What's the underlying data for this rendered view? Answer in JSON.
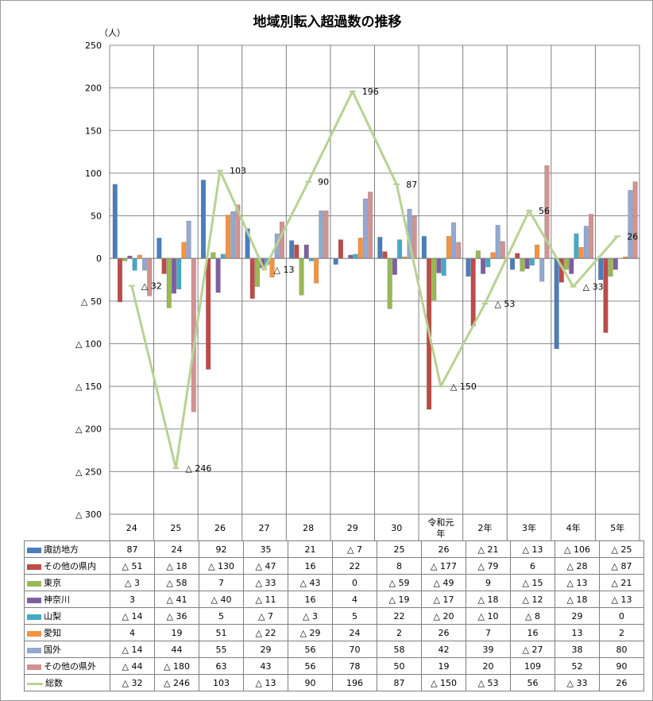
{
  "chart_data": {
    "type": "bar",
    "title": "地域別転入超過数の推移",
    "ylabel": "（人）",
    "ylim": [
      -300,
      250
    ],
    "yticks": [
      250,
      200,
      150,
      100,
      50,
      0,
      -50,
      -100,
      -150,
      -200,
      -250,
      -300
    ],
    "ytick_labels": [
      "250",
      "200",
      "150",
      "100",
      "50",
      "0",
      "△ 50",
      "△ 100",
      "△ 150",
      "△ 200",
      "△ 250",
      "△ 300"
    ],
    "categories": [
      "24",
      "25",
      "26",
      "27",
      "28",
      "29",
      "30",
      "令和元年",
      "2年",
      "3年",
      "4年",
      "5年"
    ],
    "grid": true,
    "legend": "table-bottom",
    "series": [
      {
        "name": "諏訪地方",
        "type": "bar",
        "color": "#4a7ebb",
        "values": [
          87,
          24,
          92,
          35,
          21,
          -7,
          25,
          26,
          -21,
          -13,
          -106,
          -25
        ],
        "labels": [
          "87",
          "24",
          "92",
          "35",
          "21",
          "△ 7",
          "25",
          "26",
          "△ 21",
          "△ 13",
          "△ 106",
          "△ 25"
        ]
      },
      {
        "name": "その他の県内",
        "type": "bar",
        "color": "#be4b48",
        "values": [
          -51,
          -18,
          -130,
          -47,
          16,
          22,
          8,
          -177,
          -79,
          6,
          -28,
          -87
        ],
        "labels": [
          "△ 51",
          "△ 18",
          "△ 130",
          "△ 47",
          "16",
          "22",
          "8",
          "△ 177",
          "△ 79",
          "6",
          "△ 28",
          "△ 87"
        ]
      },
      {
        "name": "東京",
        "type": "bar",
        "color": "#98b954",
        "values": [
          -3,
          -58,
          7,
          -33,
          -43,
          0,
          -59,
          -49,
          9,
          -15,
          -13,
          -21
        ],
        "labels": [
          "△ 3",
          "△ 58",
          "7",
          "△ 33",
          "△ 43",
          "0",
          "△ 59",
          "△ 49",
          "9",
          "△ 15",
          "△ 13",
          "△ 21"
        ]
      },
      {
        "name": "神奈川",
        "type": "bar",
        "color": "#7d60a0",
        "values": [
          3,
          -41,
          -40,
          -11,
          16,
          4,
          -19,
          -17,
          -18,
          -12,
          -18,
          -13
        ],
        "labels": [
          "3",
          "△ 41",
          "△ 40",
          "△ 11",
          "16",
          "4",
          "△ 19",
          "△ 17",
          "△ 18",
          "△ 12",
          "△ 18",
          "△ 13"
        ]
      },
      {
        "name": "山梨",
        "type": "bar",
        "color": "#46aac5",
        "values": [
          -14,
          -36,
          5,
          -7,
          -3,
          5,
          22,
          -20,
          -10,
          -8,
          29,
          0
        ],
        "labels": [
          "△ 14",
          "△ 36",
          "5",
          "△ 7",
          "△ 3",
          "5",
          "22",
          "△ 20",
          "△ 10",
          "△ 8",
          "29",
          "0"
        ]
      },
      {
        "name": "愛知",
        "type": "bar",
        "color": "#f69240",
        "values": [
          4,
          19,
          51,
          -22,
          -29,
          24,
          2,
          26,
          7,
          16,
          13,
          2
        ],
        "labels": [
          "4",
          "19",
          "51",
          "△ 22",
          "△ 29",
          "24",
          "2",
          "26",
          "7",
          "16",
          "13",
          "2"
        ]
      },
      {
        "name": "国外",
        "type": "bar",
        "color": "#93a9cf",
        "values": [
          -14,
          44,
          55,
          29,
          56,
          70,
          58,
          42,
          39,
          -27,
          38,
          80
        ],
        "labels": [
          "△ 14",
          "44",
          "55",
          "29",
          "56",
          "70",
          "58",
          "42",
          "39",
          "△ 27",
          "38",
          "80"
        ]
      },
      {
        "name": "その他の県外",
        "type": "bar",
        "color": "#d19392",
        "values": [
          -44,
          -180,
          63,
          43,
          56,
          78,
          50,
          19,
          20,
          109,
          52,
          90
        ],
        "labels": [
          "△ 44",
          "△ 180",
          "63",
          "43",
          "56",
          "78",
          "50",
          "19",
          "20",
          "109",
          "52",
          "90"
        ]
      },
      {
        "name": "総数",
        "type": "line",
        "color": "#b8d193",
        "values": [
          -32,
          -246,
          103,
          -13,
          90,
          196,
          87,
          -150,
          -53,
          56,
          -33,
          26
        ],
        "labels": [
          "△ 32",
          "△ 246",
          "103",
          "△ 13",
          "90",
          "196",
          "87",
          "△ 150",
          "△ 53",
          "56",
          "△ 33",
          "26"
        ]
      }
    ]
  }
}
